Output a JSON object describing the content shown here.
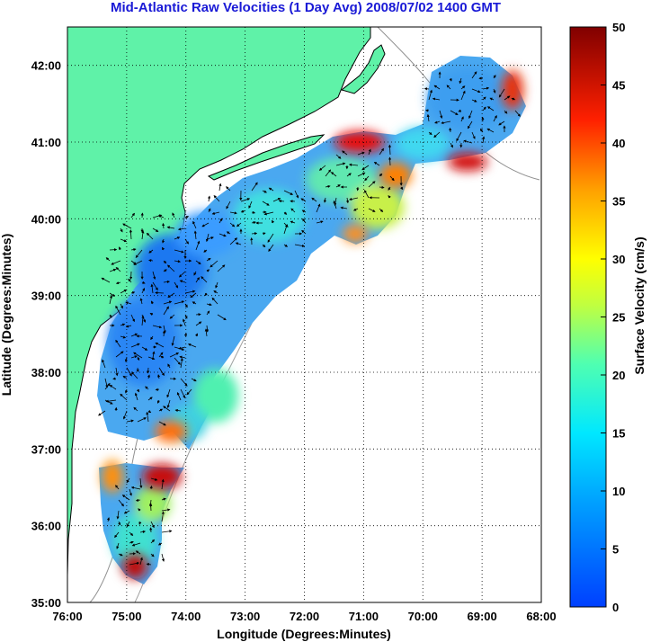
{
  "title": "Mid-Atlantic Raw Velocities (1 Day Avg) 2008/07/02 1400 GMT",
  "map": {
    "x_axis_label": "Longitude (Degrees:Minutes)",
    "y_axis_label": "Latitude (Degrees:Minutes)",
    "x_ticks": [
      "76:00",
      "75:00",
      "74:00",
      "73:00",
      "72:00",
      "71:00",
      "70:00",
      "69:00",
      "68:00"
    ],
    "y_ticks": [
      "42:00",
      "41:00",
      "40:00",
      "39:00",
      "38:00",
      "37:00",
      "36:00",
      "35:00"
    ],
    "lon_range": [
      -76,
      -68
    ],
    "lat_range": [
      35,
      42.5
    ],
    "land_color": "#5ff2a8",
    "grid": "dotted"
  },
  "colorbar": {
    "label": "Surface Velocity (cm/s)",
    "ticks": [
      "50",
      "45",
      "40",
      "35",
      "30",
      "25",
      "20",
      "15",
      "10",
      "5",
      "0"
    ],
    "range": [
      0,
      50
    ],
    "colormap": "jet"
  }
}
